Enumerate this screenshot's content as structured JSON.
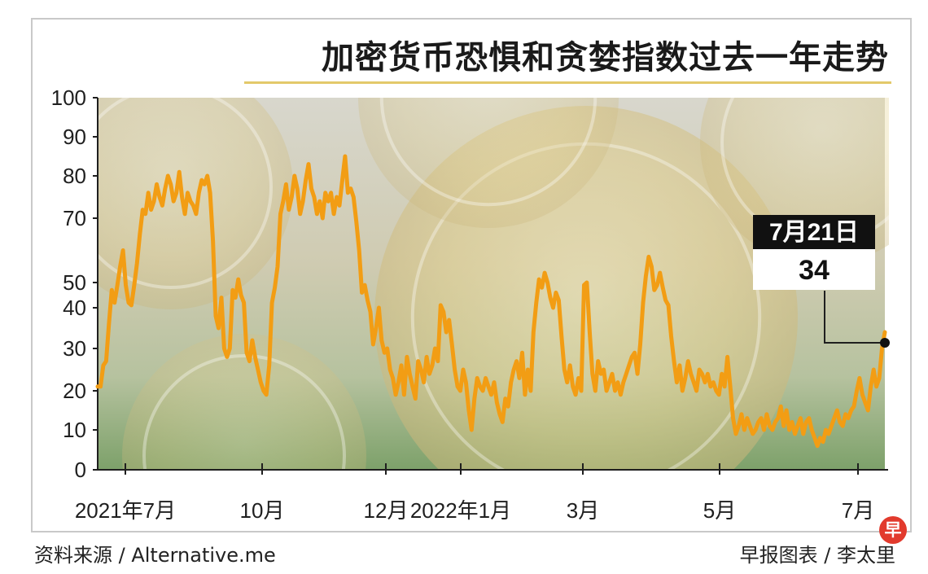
{
  "title": "加密货币恐惧和贪婪指数过去一年走势",
  "source_left": "资料来源 / Alternative.me",
  "source_right": "早报图表 / 李太里",
  "logo_text": "早",
  "colors": {
    "line": "#f29d14",
    "title_rule": "#e3c96a",
    "callout_bg": "#111111"
  },
  "chart_data": {
    "type": "line",
    "title": "加密货币恐惧和贪婪指数过去一年走势",
    "xlabel": "",
    "ylabel": "",
    "y_ticks": [
      "0",
      "10",
      "20",
      "30",
      "40",
      "50",
      "70",
      "80",
      "90",
      "100"
    ],
    "x_ticks": [
      "2021年7月",
      "10月",
      "12月",
      "2022年1月",
      "3月",
      "5月",
      "7月"
    ],
    "annotation": {
      "date": "7月21日",
      "value": "34"
    },
    "grid": false,
    "series": [
      {
        "values": [
          21,
          21,
          26,
          27,
          36,
          47,
          42,
          49,
          55,
          60,
          49,
          42,
          41,
          49,
          56,
          65,
          72,
          71,
          76,
          72,
          74,
          78,
          75,
          73,
          77,
          80,
          78,
          74,
          76,
          81,
          75,
          71,
          76,
          74,
          73,
          71,
          76,
          79,
          78,
          80,
          76,
          63,
          38,
          35,
          44,
          30,
          28,
          30,
          47,
          44,
          51,
          45,
          42,
          29,
          27,
          32,
          28,
          25,
          22,
          20,
          19,
          26,
          42,
          48,
          55,
          71,
          74,
          78,
          72,
          75,
          80,
          77,
          71,
          74,
          79,
          83,
          77,
          75,
          71,
          74,
          70,
          76,
          74,
          76,
          71,
          75,
          73,
          79,
          85,
          76,
          77,
          75,
          69,
          60,
          46,
          49,
          43,
          39,
          31,
          35,
          40,
          32,
          29,
          30,
          25,
          23,
          19,
          22,
          26,
          19,
          28,
          24,
          21,
          18,
          27,
          25,
          22,
          28,
          24,
          26,
          30,
          27,
          41,
          39,
          34,
          37,
          31,
          25,
          21,
          20,
          25,
          22,
          15,
          10,
          18,
          23,
          21,
          20,
          23,
          21,
          19,
          22,
          17,
          14,
          12,
          18,
          16,
          22,
          25,
          27,
          23,
          29,
          19,
          25,
          20,
          34,
          42,
          51,
          48,
          53,
          50,
          44,
          40,
          46,
          43,
          33,
          25,
          22,
          26,
          21,
          19,
          23,
          20,
          49,
          50,
          34,
          24,
          20,
          27,
          24,
          25,
          20,
          22,
          24,
          20,
          22,
          19,
          22,
          24,
          26,
          28,
          29,
          24,
          31,
          42,
          52,
          58,
          55,
          47,
          49,
          53,
          48,
          43,
          41,
          33,
          27,
          22,
          26,
          20,
          23,
          27,
          24,
          22,
          20,
          25,
          24,
          22,
          24,
          21,
          22,
          20,
          19,
          24,
          21,
          28,
          21,
          13,
          9,
          11,
          14,
          10,
          13,
          11,
          9,
          10,
          12,
          13,
          10,
          14,
          11,
          10,
          12,
          13,
          16,
          11,
          15,
          10,
          12,
          9,
          11,
          13,
          9,
          12,
          13,
          10,
          8,
          6,
          8,
          7,
          10,
          9,
          11,
          13,
          15,
          12,
          11,
          14,
          13,
          15,
          16,
          20,
          23,
          19,
          17,
          15,
          21,
          25,
          21,
          23,
          30,
          34
        ]
      }
    ],
    "series_range": {
      "start": "2021-07-01",
      "end": "2022-07-21"
    }
  }
}
